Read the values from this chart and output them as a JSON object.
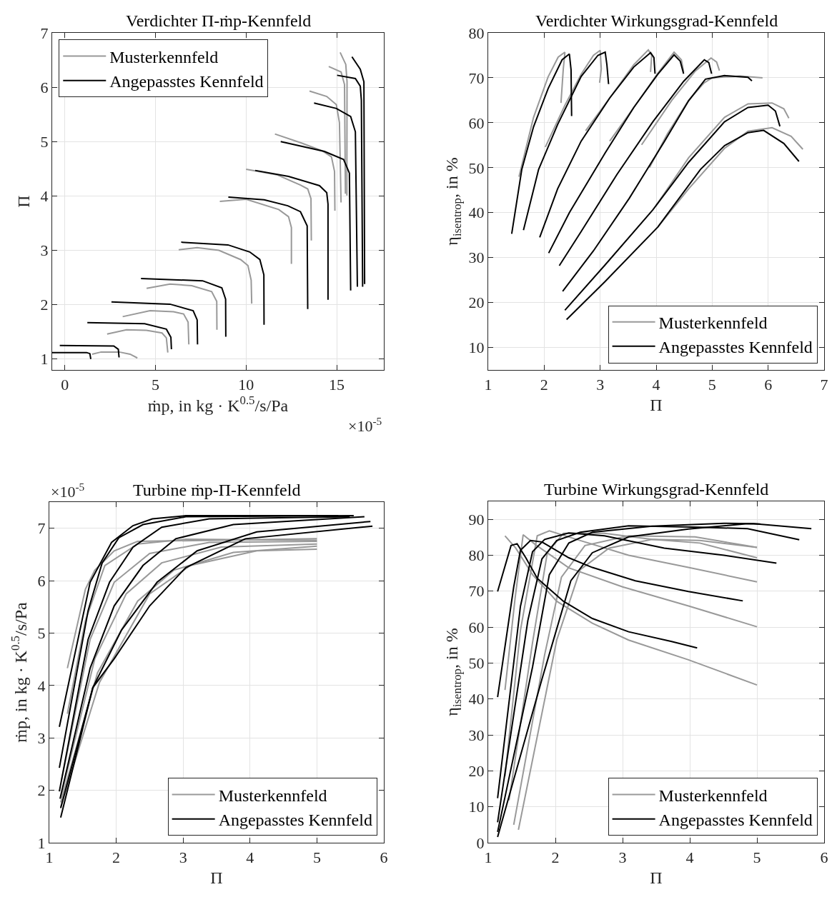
{
  "chart_data": [
    {
      "type": "line",
      "title": "Verdichter Π-ṁp-Kennfeld",
      "xlabel": "ṁp, in kg · K$^{0.5}$/s/Pa",
      "ylabel": "Π",
      "annotations": [
        "×10$^{-5}$"
      ],
      "xlim": [
        -0.7,
        17.6
      ],
      "ylim": [
        0.8,
        7
      ],
      "xticks": [
        0,
        5,
        10,
        15
      ],
      "yticks": [
        1,
        2,
        3,
        4,
        5,
        6,
        7
      ],
      "grid": true,
      "legend": "top left",
      "line_style": "solid",
      "series": [
        {
          "name": "Musterkennfeld",
          "color": "#999999",
          "x": [
            1.5,
            2.0,
            3.0,
            3.6,
            4.0
          ],
          "values": [
            1.09,
            1.13,
            1.13,
            1.09,
            1.02
          ]
        },
        {
          "color": "#999999",
          "x": [
            2.33,
            3.4,
            4.5,
            5.36,
            5.6,
            5.68
          ],
          "values": [
            1.46,
            1.54,
            1.53,
            1.48,
            1.39,
            1.12
          ]
        },
        {
          "color": "#999999",
          "x": [
            3.19,
            4.7,
            6.0,
            6.55,
            6.8,
            6.84
          ],
          "values": [
            1.78,
            1.89,
            1.87,
            1.83,
            1.68,
            1.27
          ]
        },
        {
          "color": "#999999",
          "x": [
            4.51,
            5.8,
            7.0,
            8.1,
            8.38,
            8.39
          ],
          "values": [
            2.3,
            2.38,
            2.35,
            2.24,
            2.06,
            1.54
          ]
        },
        {
          "color": "#999999",
          "x": [
            6.28,
            7.3,
            8.5,
            9.7,
            10.1,
            10.28,
            10.31
          ],
          "values": [
            3.01,
            3.05,
            3.0,
            2.83,
            2.72,
            2.45,
            2.02
          ]
        },
        {
          "color": "#999999",
          "x": [
            8.55,
            10.0,
            11.8,
            12.34,
            12.5,
            12.5
          ],
          "values": [
            3.9,
            3.94,
            3.75,
            3.62,
            3.42,
            2.75
          ]
        },
        {
          "color": "#999999",
          "x": [
            10.0,
            11.7,
            13.0,
            13.4,
            13.58,
            13.6
          ],
          "values": [
            4.49,
            4.39,
            4.2,
            4.13,
            3.95,
            3.18
          ]
        },
        {
          "color": "#999999",
          "x": [
            11.59,
            13.0,
            14.2,
            14.71,
            14.88,
            14.9
          ],
          "values": [
            5.14,
            4.98,
            4.83,
            4.72,
            4.45,
            3.73
          ]
        },
        {
          "color": "#999999",
          "x": [
            13.5,
            14.45,
            14.98,
            15.15,
            15.24
          ],
          "values": [
            5.93,
            5.83,
            5.68,
            5.35,
            3.88
          ]
        },
        {
          "color": "#999999",
          "x": [
            14.56,
            15.24,
            15.43,
            15.48
          ],
          "values": [
            6.38,
            6.28,
            6.05,
            4.04
          ]
        },
        {
          "color": "#999999",
          "x": [
            15.19,
            15.5,
            15.57,
            15.56
          ],
          "values": [
            6.64,
            6.42,
            6.1,
            4.01
          ]
        },
        {
          "name": "Angepasstes Kennfeld",
          "color": "#000000",
          "x": [
            -0.7,
            1.2,
            1.38,
            1.43
          ],
          "values": [
            1.12,
            1.12,
            1.1,
            1.0
          ]
        },
        {
          "color": "#000000",
          "x": [
            -0.28,
            2.7,
            2.95,
            2.99
          ],
          "values": [
            1.25,
            1.24,
            1.18,
            1.03
          ]
        },
        {
          "color": "#000000",
          "x": [
            1.24,
            4.4,
            5.6,
            5.85,
            5.88
          ],
          "values": [
            1.67,
            1.65,
            1.55,
            1.4,
            1.18
          ]
        },
        {
          "color": "#000000",
          "x": [
            2.57,
            5.8,
            7.08,
            7.3,
            7.32
          ],
          "values": [
            2.05,
            2.01,
            1.89,
            1.72,
            1.27
          ]
        },
        {
          "color": "#000000",
          "x": [
            4.2,
            7.6,
            8.66,
            8.87,
            8.88
          ],
          "values": [
            2.48,
            2.44,
            2.31,
            2.1,
            1.41
          ]
        },
        {
          "color": "#000000",
          "x": [
            6.42,
            9.0,
            10.2,
            10.76,
            10.98,
            10.99
          ],
          "values": [
            3.15,
            3.1,
            2.97,
            2.83,
            2.55,
            1.63
          ]
        },
        {
          "color": "#000000",
          "x": [
            9.02,
            11.0,
            12.3,
            13.0,
            13.37,
            13.4
          ],
          "values": [
            3.98,
            3.93,
            3.82,
            3.71,
            3.45,
            1.92
          ]
        },
        {
          "color": "#000000",
          "x": [
            10.5,
            12.34,
            14.05,
            14.45,
            14.52,
            14.52
          ],
          "values": [
            4.47,
            4.36,
            4.19,
            4.06,
            3.85,
            2.09
          ]
        },
        {
          "color": "#000000",
          "x": [
            11.91,
            14.32,
            15.38,
            15.7,
            15.77
          ],
          "values": [
            5.0,
            4.82,
            4.67,
            4.42,
            2.26
          ]
        },
        {
          "color": "#000000",
          "x": [
            13.75,
            14.98,
            15.77,
            16.03,
            16.14
          ],
          "values": [
            5.71,
            5.61,
            5.46,
            5.18,
            2.33
          ]
        },
        {
          "color": "#000000",
          "x": [
            15.02,
            16.03,
            16.3,
            16.36,
            16.43
          ],
          "values": [
            6.22,
            6.16,
            6.02,
            5.76,
            2.33
          ]
        },
        {
          "color": "#000000",
          "x": [
            15.84,
            16.3,
            16.5,
            16.54
          ],
          "values": [
            6.56,
            6.33,
            6.1,
            2.38
          ]
        }
      ]
    },
    {
      "type": "line",
      "title": "Verdichter Wirkungsgrad-Kennfeld",
      "xlabel": "Π",
      "ylabel": "η$_{isentrop}$, in %",
      "xlim": [
        1,
        7
      ],
      "ylim": [
        5,
        80
      ],
      "xticks": [
        1,
        2,
        3,
        4,
        5,
        6,
        7
      ],
      "yticks": [
        10,
        20,
        30,
        40,
        50,
        60,
        70,
        80
      ],
      "grid": true,
      "legend": "bottom right",
      "line_style": "solid",
      "series": [
        {
          "name": "Musterkennfeld",
          "color": "#999999",
          "x": [
            1.55,
            1.81,
            2.07,
            2.25,
            2.37,
            2.34,
            2.3
          ],
          "values": [
            48,
            61.2,
            70.2,
            74.6,
            75.7,
            71.8,
            64.4
          ]
        },
        {
          "color": "#999999",
          "x": [
            2.02,
            2.37,
            2.66,
            2.88,
            3.0,
            3.02,
            2.99
          ],
          "values": [
            54.6,
            63.9,
            70.8,
            75.0,
            76.1,
            72,
            68.9
          ]
        },
        {
          "color": "#999999",
          "x": [
            2.74,
            3.17,
            3.6,
            3.86,
            3.92,
            3.9
          ],
          "values": [
            58.2,
            65.5,
            72.9,
            76.2,
            75,
            71.3
          ]
        },
        {
          "color": "#999999",
          "x": [
            3.17,
            3.6,
            4.03,
            4.32,
            4.45,
            4.49
          ],
          "values": [
            55.9,
            63.4,
            71.0,
            75.7,
            74,
            71.3
          ]
        },
        {
          "color": "#999999",
          "x": [
            3.74,
            4.28,
            4.7,
            4.98,
            5.08,
            5.13
          ],
          "values": [
            55.1,
            65.0,
            71.5,
            74.4,
            73.5,
            71.6
          ]
        },
        {
          "color": "#999999",
          "x": [
            3.88,
            4.2,
            4.58,
            4.85,
            5.0,
            5.5,
            5.9
          ],
          "values": [
            50.0,
            57.5,
            65.0,
            68.8,
            70.0,
            70.4,
            70.0
          ]
        },
        {
          "color": "#999999",
          "x": [
            4.0,
            4.58,
            5.22,
            5.64,
            6.07,
            6.28,
            6.37
          ],
          "values": [
            41.6,
            52.2,
            61.2,
            64.2,
            64.4,
            63.1,
            61.0
          ]
        },
        {
          "color": "#999999",
          "x": [
            4.03,
            4.58,
            5.22,
            5.64,
            6.07,
            6.41,
            6.62
          ],
          "values": [
            36.8,
            45.3,
            54.3,
            58.1,
            58.9,
            57.0,
            54.1
          ]
        },
        {
          "name": "Angepasstes Kennfeld",
          "color": "#000000",
          "x": [
            1.42,
            1.6,
            1.81,
            2.07,
            2.32,
            2.45,
            2.48,
            2.49
          ],
          "values": [
            35.3,
            49.6,
            59.1,
            67.6,
            74.0,
            75.3,
            71.8,
            61.5
          ]
        },
        {
          "color": "#000000",
          "x": [
            1.63,
            1.9,
            2.24,
            2.66,
            2.96,
            3.09,
            3.12,
            3.15
          ],
          "values": [
            36.1,
            49.6,
            59.6,
            70.3,
            75.0,
            75.7,
            72.9,
            68.6
          ]
        },
        {
          "color": "#000000",
          "x": [
            1.92,
            2.24,
            2.66,
            3.17,
            3.6,
            3.9,
            3.96,
            3.98
          ],
          "values": [
            34.5,
            45.3,
            55.9,
            65.5,
            72.4,
            75.6,
            74.5,
            70.9
          ]
        },
        {
          "color": "#000000",
          "x": [
            2.08,
            2.45,
            3.09,
            3.6,
            4.03,
            4.32,
            4.43,
            4.49
          ],
          "values": [
            31.0,
            40.0,
            53.3,
            63.4,
            70.8,
            75.1,
            73.7,
            70.9
          ]
        },
        {
          "color": "#000000",
          "x": [
            2.27,
            2.66,
            3.3,
            3.94,
            4.49,
            4.86,
            4.94,
            4.99
          ],
          "values": [
            28.2,
            35.8,
            48.5,
            60.2,
            69.2,
            74.0,
            73.4,
            70.9
          ]
        },
        {
          "color": "#000000",
          "x": [
            2.33,
            2.88,
            3.52,
            4.15,
            4.58,
            4.88,
            5.22,
            5.64,
            5.71
          ],
          "values": [
            22.5,
            31.5,
            43.2,
            55.9,
            64.9,
            69.7,
            70.5,
            70.1,
            69.3
          ]
        },
        {
          "color": "#000000",
          "x": [
            2.37,
            3.09,
            3.94,
            4.58,
            5.22,
            5.64,
            6.0,
            6.13,
            6.21
          ],
          "values": [
            18.3,
            28.4,
            40.6,
            51.2,
            60.2,
            63.4,
            63.9,
            62.6,
            59.2
          ]
        },
        {
          "color": "#000000",
          "x": [
            2.4,
            3.09,
            4.03,
            4.79,
            5.22,
            5.64,
            5.92,
            6.28,
            6.55
          ],
          "values": [
            16.2,
            24.7,
            36.8,
            49.6,
            54.9,
            57.8,
            58.3,
            55.4,
            51.4
          ]
        }
      ]
    },
    {
      "type": "line",
      "title": "Turbine ṁp-Π-Kennfeld",
      "xlabel": "Π",
      "ylabel": "ṁp, in kg · K$^{0.5}$/s/Pa",
      "annotations": [
        "×10$^{-5}$"
      ],
      "xlim": [
        1,
        6
      ],
      "ylim": [
        1,
        7.5
      ],
      "xticks": [
        1,
        2,
        3,
        4,
        5,
        6
      ],
      "yticks": [
        1,
        2,
        3,
        4,
        5,
        6,
        7
      ],
      "grid": true,
      "legend": "bottom right",
      "line_style": "solid",
      "series": [
        {
          "name": "Musterkennfeld",
          "color": "#999999",
          "x": [
            1.27,
            1.54,
            1.68,
            1.97,
            2.32,
            5.0
          ],
          "values": [
            4.33,
            5.84,
            6.2,
            6.57,
            6.75,
            6.8
          ]
        },
        {
          "color": "#999999",
          "x": [
            1.27,
            1.54,
            1.83,
            2.32,
            3.04,
            5.0
          ],
          "values": [
            3.46,
            5.24,
            6.29,
            6.7,
            6.79,
            6.77
          ]
        },
        {
          "color": "#999999",
          "x": [
            1.18,
            1.61,
            1.97,
            2.5,
            3.39,
            5.0
          ],
          "values": [
            2.18,
            4.88,
            5.97,
            6.52,
            6.73,
            6.75
          ]
        },
        {
          "color": "#999999",
          "x": [
            1.17,
            1.68,
            2.15,
            2.68,
            3.57,
            5.0
          ],
          "values": [
            1.86,
            4.51,
            5.75,
            6.34,
            6.64,
            6.7
          ]
        },
        {
          "color": "#999999",
          "x": [
            1.17,
            1.72,
            2.32,
            2.86,
            3.75,
            5.0
          ],
          "values": [
            1.77,
            4.24,
            5.61,
            6.2,
            6.54,
            6.66
          ]
        },
        {
          "color": "#999999",
          "x": [
            1.17,
            1.75,
            2.5,
            3.11,
            4.1,
            5.0
          ],
          "values": [
            1.68,
            4.06,
            5.75,
            6.29,
            6.57,
            6.6
          ]
        },
        {
          "name": "Angepasstes Kennfeld",
          "color": "#000000",
          "x": [
            1.15,
            1.61,
            1.93,
            2.25,
            2.54,
            3.04,
            5.32
          ],
          "values": [
            3.21,
            5.97,
            6.73,
            7.05,
            7.18,
            7.24,
            7.24
          ]
        },
        {
          "color": "#000000",
          "x": [
            1.15,
            1.58,
            1.79,
            2.04,
            2.4,
            3.04,
            5.55
          ],
          "values": [
            2.43,
            5.43,
            6.34,
            6.82,
            7.07,
            7.22,
            7.24
          ]
        },
        {
          "color": "#000000",
          "x": [
            1.15,
            1.58,
            1.9,
            2.25,
            2.68,
            3.39,
            5.49
          ],
          "values": [
            1.98,
            4.88,
            5.97,
            6.64,
            7.02,
            7.18,
            7.22
          ]
        },
        {
          "color": "#000000",
          "x": [
            1.16,
            1.61,
            1.97,
            2.4,
            2.89,
            3.75,
            5.71
          ],
          "values": [
            1.84,
            4.33,
            5.52,
            6.29,
            6.8,
            7.07,
            7.22
          ]
        },
        {
          "color": "#000000",
          "x": [
            1.17,
            1.65,
            2.08,
            2.61,
            3.21,
            4.1,
            5.8
          ],
          "values": [
            1.66,
            3.96,
            5.06,
            5.97,
            6.57,
            6.93,
            7.13
          ]
        },
        {
          "color": "#000000",
          "x": [
            1.17,
            1.65,
            1.97,
            2.5,
            3.04,
            3.93,
            5.83
          ],
          "values": [
            1.48,
            3.96,
            4.51,
            5.52,
            6.25,
            6.8,
            7.04
          ]
        }
      ]
    },
    {
      "type": "line",
      "title": "Turbine Wirkungsgrad-Kennfeld",
      "xlabel": "Π",
      "ylabel": "η$_{isentrop}$, in %",
      "xlim": [
        1,
        6
      ],
      "ylim": [
        0,
        95
      ],
      "xticks": [
        1,
        2,
        3,
        4,
        5,
        6
      ],
      "yticks": [
        0,
        10,
        20,
        30,
        40,
        50,
        60,
        70,
        80,
        90
      ],
      "grid": true,
      "legend": "bottom right",
      "line_style": "solid",
      "series": [
        {
          "name": "Musterkennfeld",
          "color": "#999999",
          "x": [
            1.25,
            1.41,
            1.66,
            2.02,
            2.55,
            3.09,
            3.98,
            5.0
          ],
          "values": [
            85.4,
            82.0,
            74.6,
            67.2,
            61.1,
            56.4,
            50.9,
            43.9
          ]
        },
        {
          "color": "#999999",
          "x": [
            1.25,
            1.4,
            1.52,
            1.7,
            2.2,
            3.0,
            4.0,
            5.0
          ],
          "values": [
            42.5,
            68,
            85.7,
            83,
            76.5,
            71.2,
            65.8,
            60.1
          ]
        },
        {
          "color": "#999999",
          "x": [
            1.25,
            1.48,
            1.73,
            1.91,
            2.37,
            3.09,
            3.98,
            5.0
          ],
          "values": [
            18.5,
            59.1,
            85.4,
            86.8,
            84.1,
            80.0,
            76.6,
            72.6
          ]
        },
        {
          "color": "#999999",
          "x": [
            1.31,
            1.66,
            1.88,
            2.12,
            2.73,
            3.44,
            4.15,
            5.0
          ],
          "values": [
            11.8,
            55.7,
            80.7,
            86.1,
            86.1,
            84.4,
            83.4,
            79.3
          ]
        },
        {
          "color": "#999999",
          "x": [
            1.38,
            1.84,
            2.09,
            2.44,
            3.09,
            4.08,
            5.0
          ],
          "values": [
            5.0,
            52.3,
            73.9,
            82.7,
            85.4,
            85.1,
            82.2
          ]
        },
        {
          "color": "#999999",
          "x": [
            1.45,
            2.02,
            2.37,
            2.8,
            3.44,
            4.15,
            5.0
          ],
          "values": [
            3.6,
            56.4,
            76.0,
            82.0,
            84.4,
            84.1,
            82.2
          ]
        },
        {
          "name": "Angepasstes Kennfeld",
          "color": "#000000",
          "x": [
            1.14,
            1.34,
            1.43,
            1.56,
            1.73,
            2.12,
            2.55,
            3.09,
            3.73,
            4.11
          ],
          "values": [
            69.9,
            82.7,
            83.2,
            79.3,
            73.6,
            67.2,
            62.4,
            58.7,
            56.0,
            54.2
          ]
        },
        {
          "color": "#000000",
          "x": [
            1.14,
            1.38,
            1.48,
            1.63,
            1.8,
            2.2,
            2.55,
            3.19,
            3.98,
            4.79
          ],
          "values": [
            40.5,
            71.2,
            81.4,
            84.1,
            83.7,
            79.3,
            76.6,
            72.9,
            69.9,
            67.3
          ]
        },
        {
          "color": "#000000",
          "x": [
            1.14,
            1.48,
            1.66,
            1.84,
            2.2,
            2.73,
            3.62,
            4.51,
            5.29
          ],
          "values": [
            12.4,
            65.8,
            81.0,
            84.4,
            86.2,
            85.4,
            82.0,
            80.0,
            77.8
          ]
        },
        {
          "color": "#000000",
          "x": [
            1.14,
            1.59,
            1.8,
            2.02,
            2.37,
            3.09,
            4.15,
            4.86,
            5.63
          ],
          "values": [
            5.7,
            61.8,
            79.0,
            84.1,
            86.4,
            88.2,
            87.8,
            87.4,
            84.3
          ]
        },
        {
          "color": "#000000",
          "x": [
            1.14,
            1.66,
            1.91,
            2.2,
            2.55,
            3.44,
            4.51,
            4.95,
            5.81
          ],
          "values": [
            3.0,
            48.9,
            74.6,
            83.4,
            86.4,
            88.1,
            88.9,
            88.8,
            87.4
          ]
        },
        {
          "color": "#000000",
          "x": [
            1.14,
            1.8,
            2.23,
            2.55,
            3.09,
            3.98,
            4.86,
            5.05
          ],
          "values": [
            1.6,
            45.5,
            72.9,
            80.7,
            85.1,
            87.3,
            88.8,
            88.7
          ]
        }
      ]
    }
  ]
}
